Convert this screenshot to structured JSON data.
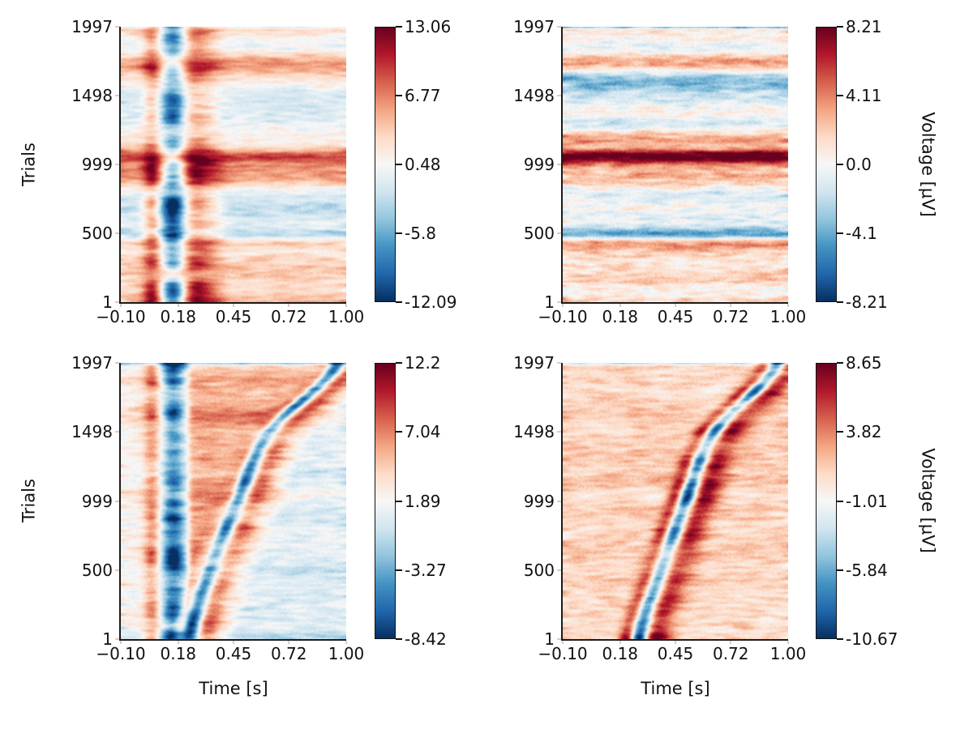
{
  "figure": {
    "background_color": "#ffffff",
    "text_color": "#111111",
    "spine_color": "#1a1a1a",
    "minor_tick_color": "#e3c8bc",
    "colorbar_tick_color": "#111111",
    "colormap": "RdBu_r",
    "colormap_stops": [
      "#053061",
      "#2166ac",
      "#4393c3",
      "#92c5de",
      "#d1e5f0",
      "#f7f7f7",
      "#fddbc7",
      "#f4a582",
      "#d6604d",
      "#b2182b",
      "#67001f"
    ]
  },
  "chart_data": [
    {
      "type": "heatmap",
      "panel": "top-left",
      "y_axis_label": "Trials",
      "x_axis_label": "",
      "colorbar_label": "",
      "x_range": [
        -0.1,
        1.0
      ],
      "n_trials": 1997,
      "x_ticks": [
        -0.1,
        0.18,
        0.45,
        0.72,
        1.0
      ],
      "x_tick_labels": [
        "−0.10",
        "0.18",
        "0.45",
        "0.72",
        "1.00"
      ],
      "y_ticks": [
        1997,
        1498,
        999,
        500,
        1
      ],
      "y_tick_labels": [
        "1997",
        "1498",
        "999",
        "500",
        "1"
      ],
      "vmin": -12.09,
      "vmax": 13.06,
      "colorbar_ticks": [
        13.06,
        6.77,
        0.48,
        -5.8,
        -12.09
      ],
      "colorbar_tick_labels": [
        "13.06",
        "6.77",
        "0.48",
        "-5.8",
        "-12.09"
      ],
      "gen": {
        "seed": 11,
        "baseline": 1.6,
        "row_noise": 2.6,
        "cell_noise": 1.9,
        "stripes": [
          {
            "t": 0.05,
            "amp": 5.5,
            "w": 0.032
          },
          {
            "t": 0.155,
            "amp": -9.0,
            "w": 0.042
          },
          {
            "t": 0.26,
            "amp": 5.5,
            "w": 0.05
          },
          {
            "t": 0.345,
            "amp": 2.2,
            "w": 0.045
          }
        ],
        "bands": [
          {
            "u": 0.53,
            "amp": 6.0,
            "w": 0.018
          },
          {
            "u": 0.49,
            "amp": 3.0,
            "w": 0.045
          },
          {
            "u": 0.25,
            "amp": -4.0,
            "w": 0.015
          },
          {
            "u": 0.21,
            "amp": 3.5,
            "w": 0.013
          },
          {
            "u": 0.75,
            "amp": -2.4,
            "w": 0.05
          },
          {
            "u": 0.87,
            "amp": 2.6,
            "w": 0.022
          },
          {
            "u": 0.33,
            "amp": -2.0,
            "w": 0.02
          },
          {
            "u": 0.12,
            "amp": 1.8,
            "w": 0.03
          },
          {
            "u": 1.0,
            "amp": -4.0,
            "w": 0.004
          }
        ]
      }
    },
    {
      "type": "heatmap",
      "panel": "top-right",
      "y_axis_label": "",
      "x_axis_label": "",
      "colorbar_label": "Voltage [µV]",
      "x_range": [
        -0.1,
        1.0
      ],
      "n_trials": 1997,
      "x_ticks": [
        -0.1,
        0.18,
        0.45,
        0.72,
        1.0
      ],
      "x_tick_labels": [
        "−0.10",
        "0.18",
        "0.45",
        "0.72",
        "1.00"
      ],
      "y_ticks": [
        1997,
        1498,
        999,
        500,
        1
      ],
      "y_tick_labels": [
        "1997",
        "1498",
        "999",
        "500",
        "1"
      ],
      "vmin": -8.21,
      "vmax": 8.21,
      "colorbar_ticks": [
        8.21,
        4.11,
        0.0,
        -4.1,
        -8.21
      ],
      "colorbar_tick_labels": [
        "8.21",
        "4.11",
        "0.0",
        "-4.1",
        "-8.21"
      ],
      "gen": {
        "seed": 22,
        "baseline": 0.4,
        "row_noise": 3.0,
        "cell_noise": 1.7,
        "stripes": [],
        "bands": [
          {
            "u": 0.53,
            "amp": 6.0,
            "w": 0.016
          },
          {
            "u": 0.49,
            "amp": 2.5,
            "w": 0.05
          },
          {
            "u": 0.25,
            "amp": -4.5,
            "w": 0.015
          },
          {
            "u": 0.21,
            "amp": 3.2,
            "w": 0.013
          },
          {
            "u": 0.74,
            "amp": -3.2,
            "w": 0.05
          },
          {
            "u": 0.82,
            "amp": -2.2,
            "w": 0.03
          },
          {
            "u": 0.88,
            "amp": 2.2,
            "w": 0.025
          },
          {
            "u": 0.6,
            "amp": 1.6,
            "w": 0.03
          },
          {
            "u": 0.35,
            "amp": -1.8,
            "w": 0.03
          },
          {
            "u": 0.45,
            "amp": 2.0,
            "w": 0.02
          },
          {
            "u": 1.0,
            "amp": -4.0,
            "w": 0.004
          }
        ]
      }
    },
    {
      "type": "heatmap",
      "panel": "bottom-left",
      "y_axis_label": "Trials",
      "x_axis_label": "Time [s]",
      "colorbar_label": "",
      "x_range": [
        -0.1,
        1.0
      ],
      "n_trials": 1997,
      "x_ticks": [
        -0.1,
        0.18,
        0.45,
        0.72,
        1.0
      ],
      "x_tick_labels": [
        "−0.10",
        "0.18",
        "0.45",
        "0.72",
        "1.00"
      ],
      "y_ticks": [
        1997,
        1498,
        999,
        500,
        1
      ],
      "y_tick_labels": [
        "1997",
        "1498",
        "999",
        "500",
        "1"
      ],
      "vmin": -8.42,
      "vmax": 12.2,
      "colorbar_ticks": [
        12.2,
        7.04,
        1.89,
        -3.27,
        -8.42
      ],
      "colorbar_tick_labels": [
        "12.2",
        "7.04",
        "1.89",
        "-3.27",
        "-8.42"
      ],
      "gen": {
        "seed": 33,
        "baseline": 2.3,
        "row_noise": 1.5,
        "cell_noise": 1.7,
        "stripes": [
          {
            "t": 0.05,
            "amp": 4.2,
            "w": 0.03
          },
          {
            "t": 0.155,
            "amp": -8.0,
            "w": 0.042
          }
        ],
        "bands": [
          {
            "u": 0.53,
            "amp": 1.8,
            "w": 0.02
          },
          {
            "u": 0.25,
            "amp": -1.4,
            "w": 0.02
          },
          {
            "u": 1.0,
            "amp": -4.0,
            "w": 0.004
          }
        ],
        "erp": {
          "anchors_u": [
            0,
            0.25,
            0.5,
            0.75,
            1
          ],
          "anchors_t": [
            0.235,
            0.335,
            0.47,
            0.625,
            0.96
          ],
          "bands": [
            {
              "dt": -0.05,
              "amp": 4.5,
              "w": 0.024
            },
            {
              "dt": 0.0,
              "amp": -9.0,
              "w": 0.032
            },
            {
              "dt": 0.075,
              "amp": 5.0,
              "w": 0.05
            }
          ]
        },
        "fill": {
          "amp": 3.6,
          "from": 0.205
        },
        "cool_after": {
          "amp": -1.5,
          "offset": 0.17
        }
      }
    },
    {
      "type": "heatmap",
      "panel": "bottom-right",
      "y_axis_label": "",
      "x_axis_label": "Time [s]",
      "colorbar_label": "Voltage [µV]",
      "x_range": [
        -0.1,
        1.0
      ],
      "n_trials": 1997,
      "x_ticks": [
        -0.1,
        0.18,
        0.45,
        0.72,
        1.0
      ],
      "x_tick_labels": [
        "−0.10",
        "0.18",
        "0.45",
        "0.72",
        "1.00"
      ],
      "y_ticks": [
        1997,
        1498,
        999,
        500,
        1
      ],
      "y_tick_labels": [
        "1997",
        "1498",
        "999",
        "500",
        "1"
      ],
      "vmin": -10.67,
      "vmax": 8.65,
      "colorbar_ticks": [
        8.65,
        3.82,
        -1.01,
        -5.84,
        -10.67
      ],
      "colorbar_tick_labels": [
        "8.65",
        "3.82",
        "-1.01",
        "-5.84",
        "-10.67"
      ],
      "gen": {
        "seed": 44,
        "baseline": 1.1,
        "row_noise": 1.3,
        "cell_noise": 1.6,
        "stripes": [],
        "bands": [
          {
            "u": 0.5,
            "amp": 0.8,
            "w": 0.06
          },
          {
            "u": 1.0,
            "amp": -4.0,
            "w": 0.004
          }
        ],
        "erp": {
          "anchors_u": [
            0,
            0.25,
            0.5,
            0.75,
            1
          ],
          "anchors_t": [
            0.27,
            0.38,
            0.5,
            0.64,
            0.95
          ],
          "bands": [
            {
              "dt": -0.055,
              "amp": 5.5,
              "w": 0.03
            },
            {
              "dt": 0.0,
              "amp": -10.0,
              "w": 0.032
            },
            {
              "dt": 0.08,
              "amp": 5.5,
              "w": 0.055
            }
          ]
        }
      }
    }
  ]
}
